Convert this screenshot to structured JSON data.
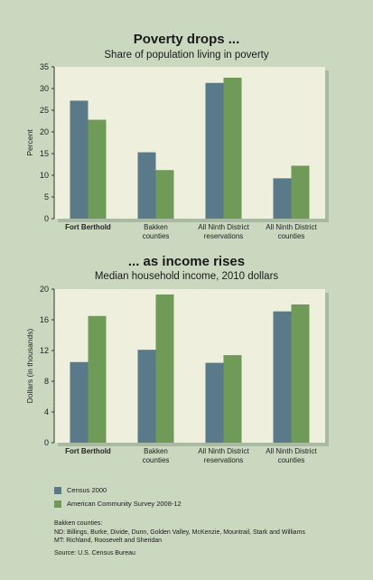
{
  "colors": {
    "census": "#5a7a8a",
    "acs": "#6f9a58",
    "plot_bg": "#eef0dd",
    "page_bg": "#c9d8bf"
  },
  "chart_data": [
    {
      "type": "bar",
      "title": "Poverty drops ...",
      "subtitle": "Share of population living in poverty",
      "ylabel": "Percent",
      "xlabel": "",
      "ylim": [
        0,
        35
      ],
      "yticks": [
        0,
        5,
        10,
        15,
        20,
        25,
        30,
        35
      ],
      "categories": [
        [
          "Fort Berthold"
        ],
        [
          "Bakken",
          "counties"
        ],
        [
          "All Ninth District",
          "reservations"
        ],
        [
          "All Ninth District",
          "counties"
        ]
      ],
      "bold_categories": [
        0
      ],
      "series": [
        {
          "name": "Census 2000",
          "values": [
            27.2,
            15.3,
            31.3,
            9.3
          ]
        },
        {
          "name": "American Community Survey 2008-12",
          "values": [
            22.8,
            11.2,
            32.5,
            12.2
          ]
        }
      ]
    },
    {
      "type": "bar",
      "title": "... as income rises",
      "subtitle": "Median household income, 2010 dollars",
      "ylabel": "Dollars (in thousands)",
      "xlabel": "",
      "ylim": [
        0,
        20
      ],
      "yticks": [
        0,
        4,
        8,
        12,
        16,
        20
      ],
      "categories": [
        [
          "Fort Berthold"
        ],
        [
          "Bakken",
          "counties"
        ],
        [
          "All Ninth District",
          "reservations"
        ],
        [
          "All Ninth District",
          "counties"
        ]
      ],
      "bold_categories": [
        0
      ],
      "series": [
        {
          "name": "Census 2000",
          "values": [
            10.5,
            12.1,
            10.4,
            17.1
          ]
        },
        {
          "name": "American Community Survey 2008-12",
          "values": [
            16.5,
            19.3,
            11.4,
            18.0
          ]
        }
      ]
    }
  ],
  "legend": [
    {
      "label": "Census 2000"
    },
    {
      "label": "American Community Survey 2008-12"
    }
  ],
  "notes": {
    "bakken_heading": "Bakken counties:",
    "nd_line": "ND: Billings, Burke, Divide, Dunn, Golden Valley, McKenzie, Mountrail, Stark and Williams",
    "mt_line": "MT: Richland, Roosevelt and Sheridan",
    "source": "Source: U.S. Census Bureau"
  }
}
